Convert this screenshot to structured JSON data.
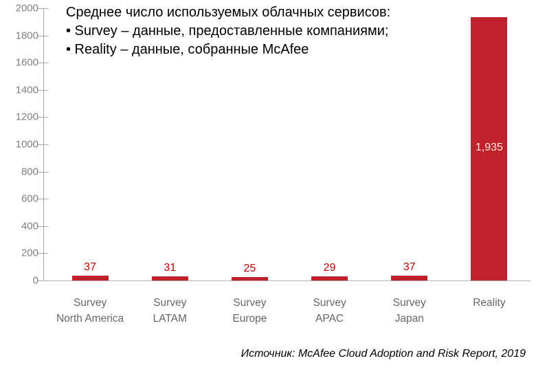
{
  "annotation": {
    "line1": "Среднее число используемых облачных сервисов:",
    "line2": "• Survey – данные, предоставленные компаниями;",
    "line3": "• Reality – данные, собранные McAfee"
  },
  "footer": {
    "source": "Источник: McAfee Cloud Adoption and Risk Report, 2019"
  },
  "chart_data": {
    "type": "bar",
    "title": "Среднее число используемых облачных сервисов: Survey – данные, предоставленные компаниями; Reality – данные, собранные McAfee",
    "categories": [
      "Survey North America",
      "Survey LATAM",
      "Survey Europe",
      "Survey APAC",
      "Survey Japan",
      "Reality"
    ],
    "category_lines": [
      [
        "Survey",
        "North America"
      ],
      [
        "Survey",
        "LATAM"
      ],
      [
        "Survey",
        "Europe"
      ],
      [
        "Survey",
        "APAC"
      ],
      [
        "Survey",
        "Japan"
      ],
      [
        "Reality"
      ]
    ],
    "values": [
      37,
      31,
      25,
      29,
      37,
      1935
    ],
    "value_labels": [
      "37",
      "31",
      "25",
      "29",
      "37",
      "1,935"
    ],
    "xlabel": "",
    "ylabel": "",
    "ylim": [
      0,
      2000
    ],
    "yticks": [
      0,
      200,
      400,
      600,
      800,
      1000,
      1200,
      1400,
      1600,
      1800,
      2000
    ],
    "grid": false,
    "legend": false,
    "colors": {
      "bar": "#c0212b",
      "value_label": "#c00000",
      "inside_value_label": "#f6efe2",
      "axis": "#a6a6a6",
      "tick_label": "#808080",
      "category_label": "#666666"
    },
    "source": "Источник: McAfee Cloud Adoption and Risk Report, 2019"
  }
}
